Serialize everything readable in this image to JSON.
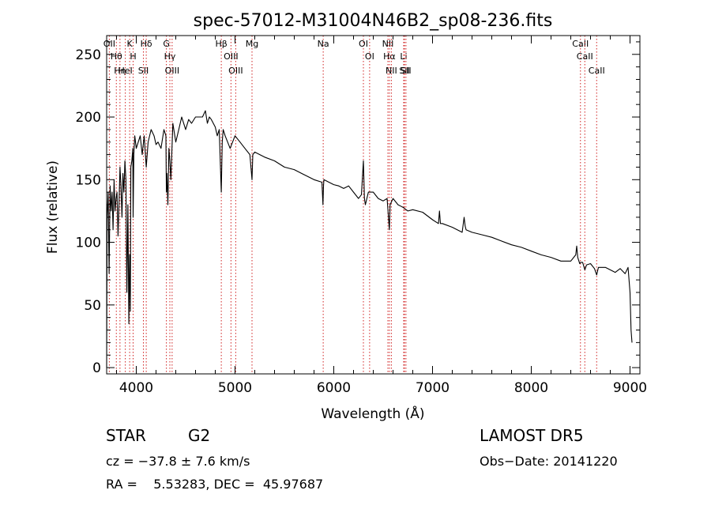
{
  "chart_data": {
    "type": "line",
    "title": "spec-57012-M31004N46B2_sp08-236.fits",
    "xlabel": "Wavelength (Å)",
    "ylabel": "Flux (relative)",
    "xlim": [
      3700,
      9100
    ],
    "ylim": [
      -5,
      265
    ],
    "x_ticks": [
      4000,
      5000,
      6000,
      7000,
      8000,
      9000
    ],
    "y_ticks": [
      0,
      50,
      100,
      150,
      200,
      250
    ],
    "grid": false,
    "series": [
      {
        "color": "#000000",
        "x": [
          3700,
          3705,
          3715,
          3725,
          3735,
          3745,
          3755,
          3765,
          3775,
          3785,
          3795,
          3805,
          3815,
          3825,
          3835,
          3845,
          3855,
          3865,
          3875,
          3885,
          3895,
          3905,
          3915,
          3925,
          3933,
          3940,
          3945,
          3955,
          3965,
          3968,
          3975,
          3985,
          4000,
          4020,
          4040,
          4060,
          4080,
          4101,
          4120,
          4150,
          4180,
          4200,
          4220,
          4250,
          4280,
          4300,
          4305,
          4310,
          4320,
          4330,
          4340,
          4350,
          4370,
          4400,
          4430,
          4460,
          4500,
          4530,
          4560,
          4600,
          4630,
          4650,
          4670,
          4700,
          4720,
          4740,
          4760,
          4780,
          4800,
          4820,
          4840,
          4861,
          4870,
          4880,
          4900,
          4950,
          5000,
          5050,
          5100,
          5150,
          5172,
          5180,
          5200,
          5250,
          5300,
          5400,
          5500,
          5600,
          5700,
          5800,
          5880,
          5890,
          5896,
          5900,
          5950,
          6000,
          6050,
          6100,
          6150,
          6200,
          6250,
          6280,
          6300,
          6310,
          6320,
          6350,
          6400,
          6450,
          6500,
          6540,
          6563,
          6570,
          6600,
          6650,
          6700,
          6750,
          6800,
          6900,
          7000,
          7060,
          7070,
          7080,
          7100,
          7200,
          7300,
          7320,
          7330,
          7340,
          7400,
          7500,
          7600,
          7700,
          7800,
          7900,
          8000,
          8100,
          8200,
          8300,
          8400,
          8450,
          8460,
          8470,
          8490,
          8500,
          8520,
          8542,
          8560,
          8600,
          8640,
          8662,
          8680,
          8700,
          8750,
          8800,
          8850,
          8900,
          8950,
          8980,
          9000,
          9010,
          9020
        ],
        "y": [
          0,
          120,
          140,
          75,
          145,
          125,
          140,
          110,
          150,
          125,
          135,
          140,
          105,
          130,
          160,
          145,
          120,
          155,
          140,
          165,
          150,
          60,
          130,
          35,
          90,
          45,
          160,
          165,
          175,
          120,
          170,
          185,
          175,
          180,
          185,
          170,
          185,
          160,
          180,
          190,
          185,
          178,
          180,
          175,
          190,
          185,
          140,
          155,
          130,
          175,
          165,
          150,
          195,
          180,
          190,
          200,
          190,
          198,
          195,
          200,
          200,
          200,
          200,
          205,
          195,
          200,
          198,
          195,
          192,
          185,
          190,
          140,
          180,
          190,
          185,
          175,
          185,
          180,
          175,
          170,
          150,
          170,
          172,
          170,
          168,
          165,
          160,
          158,
          154,
          150,
          148,
          130,
          145,
          150,
          148,
          146,
          145,
          143,
          145,
          140,
          135,
          138,
          165,
          135,
          130,
          140,
          140,
          135,
          133,
          135,
          110,
          130,
          135,
          130,
          128,
          125,
          126,
          124,
          118,
          115,
          125,
          115,
          115,
          112,
          108,
          120,
          113,
          110,
          108,
          106,
          104,
          101,
          98,
          96,
          93,
          90,
          88,
          85,
          85,
          90,
          97,
          88,
          83,
          84,
          84,
          78,
          82,
          83,
          79,
          74,
          80,
          80,
          80,
          78,
          76,
          79,
          75,
          80,
          60,
          30,
          20
        ]
      }
    ],
    "spectral_lines": [
      {
        "label": "Hδ",
        "x": 4101
      },
      {
        "label": "Hγ",
        "x": 4340
      },
      {
        "label": "Hβ",
        "x": 4861
      },
      {
        "label": "Hα",
        "x": 6563
      },
      {
        "label": "Hη",
        "x": 3835
      },
      {
        "label": "Hθ",
        "x": 3798
      },
      {
        "label": "K",
        "x": 3933
      },
      {
        "label": "H",
        "x": 3968
      },
      {
        "label": "G",
        "x": 4305
      },
      {
        "label": "Mg",
        "x": 5172
      },
      {
        "label": "Na",
        "x": 5893
      },
      {
        "label": "OII",
        "x": 3727
      },
      {
        "label": "HeI",
        "x": 3889
      },
      {
        "label": "SII",
        "x": 4072
      },
      {
        "label": "OIII",
        "x": 4363
      },
      {
        "label": "OIII",
        "x": 4959
      },
      {
        "label": "OIII",
        "x": 5007
      },
      {
        "label": "OI",
        "x": 6300
      },
      {
        "label": "OI",
        "x": 6363
      },
      {
        "label": "NII",
        "x": 6548
      },
      {
        "label": "NII",
        "x": 6583
      },
      {
        "label": "SII",
        "x": 6716
      },
      {
        "label": "SII",
        "x": 6731
      },
      {
        "label": "Li",
        "x": 6708
      },
      {
        "label": "CaII",
        "x": 8498
      },
      {
        "label": "CaII",
        "x": 8542
      },
      {
        "label": "CaII",
        "x": 8662
      }
    ]
  },
  "info": {
    "class": "STAR",
    "subclass": "G2",
    "survey": "LAMOST DR5",
    "cz": "cz = −37.8 ± 7.6 km/s",
    "obs_date": "Obs−Date: 20141220",
    "radec": "RA =    5.53283, DEC =  45.97687"
  }
}
